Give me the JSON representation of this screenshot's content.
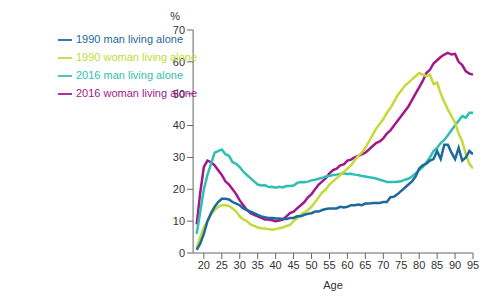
{
  "chart_data": {
    "type": "line",
    "x_label": "Age",
    "y_label": "%",
    "x": [
      18,
      19,
      20,
      21,
      22,
      23,
      24,
      25,
      26,
      27,
      28,
      29,
      30,
      31,
      32,
      33,
      34,
      35,
      36,
      37,
      38,
      39,
      40,
      41,
      42,
      43,
      44,
      45,
      46,
      47,
      48,
      49,
      50,
      51,
      52,
      53,
      54,
      55,
      56,
      57,
      58,
      59,
      60,
      61,
      62,
      63,
      64,
      65,
      66,
      67,
      68,
      69,
      70,
      71,
      72,
      73,
      74,
      75,
      76,
      77,
      78,
      79,
      80,
      81,
      82,
      83,
      84,
      85,
      86,
      87,
      88,
      89,
      90,
      91,
      92,
      93,
      94,
      95
    ],
    "xlim": [
      17,
      95
    ],
    "xticks": [
      20,
      25,
      30,
      35,
      40,
      45,
      50,
      55,
      60,
      65,
      70,
      75,
      80,
      85,
      90,
      95
    ],
    "ylim": [
      0,
      70
    ],
    "yticks": [
      0,
      10,
      20,
      30,
      40,
      50,
      60,
      70
    ],
    "grid": false,
    "legend": "upper left",
    "series": [
      {
        "name": "2016 woman living alone",
        "color": "#a3178a",
        "values": [
          9,
          19,
          27,
          29,
          28.5,
          27.5,
          26,
          24.5,
          22.5,
          21.5,
          20,
          18.5,
          16.5,
          15,
          13.5,
          12.5,
          12,
          11.5,
          11,
          10.5,
          10.5,
          10.3,
          10,
          10.2,
          10.5,
          11.5,
          12.5,
          13,
          14,
          15,
          16,
          17.5,
          18.5,
          20,
          21.5,
          22.5,
          23.5,
          25,
          26,
          26.5,
          27.5,
          27.8,
          29,
          29.3,
          30,
          30.5,
          31,
          31.5,
          32.5,
          33.5,
          34.5,
          35,
          36,
          37.5,
          38.5,
          40,
          41.5,
          43,
          44.5,
          46,
          48,
          50,
          52,
          54,
          56.5,
          57.5,
          59.5,
          60.5,
          61.5,
          62.3,
          62.8,
          62.3,
          62.5,
          60,
          59,
          57,
          56.3,
          56
        ]
      },
      {
        "name": "2016 man living alone",
        "color": "#2fbfb2",
        "values": [
          6,
          13,
          20,
          24.5,
          28,
          31.5,
          32,
          32.5,
          31,
          30.5,
          28.5,
          28,
          27,
          25.5,
          24.5,
          23.5,
          22.5,
          21.5,
          21.2,
          21.3,
          20.7,
          20.8,
          20.5,
          20.8,
          20.6,
          21,
          21,
          21.2,
          22,
          22.3,
          22.2,
          22.4,
          22.8,
          23,
          23.3,
          23.6,
          24,
          24.2,
          24.5,
          24.6,
          24.8,
          25,
          24.8,
          24.9,
          24.6,
          24.5,
          24.2,
          24,
          23.8,
          23.6,
          23.4,
          23,
          22.7,
          22.3,
          22.3,
          22.3,
          22.4,
          22.5,
          23,
          23.3,
          24,
          25,
          26,
          27,
          28.5,
          30,
          32,
          33,
          34.5,
          35.5,
          37,
          38.5,
          40,
          41.5,
          43,
          42.5,
          44,
          44
        ]
      },
      {
        "name": "1990 woman living alone",
        "color": "#c5d93a",
        "values": [
          1.5,
          5,
          8,
          10,
          12,
          13.5,
          14.5,
          15,
          15,
          14.8,
          14,
          13,
          11.5,
          10.5,
          10,
          9,
          8.5,
          8,
          7.8,
          7.7,
          7.5,
          7.3,
          7.5,
          7.8,
          8,
          8.5,
          8.8,
          10,
          11,
          12,
          12.8,
          13.5,
          14.5,
          16,
          17.5,
          19,
          20,
          21.5,
          22.5,
          23.5,
          24.5,
          25.5,
          26.5,
          27.5,
          29,
          30.5,
          31.5,
          33,
          35,
          37,
          39,
          40.5,
          42,
          44,
          45.5,
          47.5,
          49.5,
          51,
          52.5,
          53.5,
          54.5,
          55.5,
          56.5,
          56,
          55.5,
          56,
          53,
          53.5,
          50,
          47.5,
          45,
          43,
          41,
          37.5,
          35,
          31,
          28,
          26.5
        ]
      },
      {
        "name": "1990 man living alone",
        "color": "#1b6a9c",
        "values": [
          1,
          3,
          6,
          10,
          12.5,
          14.5,
          16,
          17,
          17,
          16.8,
          16,
          15.5,
          15,
          14,
          13.5,
          13,
          12.5,
          12,
          11.5,
          11.2,
          11,
          11,
          10.8,
          10.8,
          10.7,
          10.7,
          11,
          11,
          11.5,
          11.5,
          12,
          12.3,
          12.5,
          13,
          13,
          13.5,
          13.8,
          14,
          14,
          14,
          14.5,
          14.3,
          14.5,
          15,
          15,
          15.2,
          15,
          15.5,
          15.5,
          15.7,
          15.7,
          15.7,
          16,
          16,
          17.5,
          17.7,
          18.5,
          19.5,
          20.5,
          21.5,
          22.5,
          24,
          26.5,
          27.5,
          28,
          29,
          29.5,
          32,
          29.5,
          34,
          34,
          31.5,
          29.5,
          33,
          29,
          30,
          32,
          31
        ]
      }
    ]
  }
}
